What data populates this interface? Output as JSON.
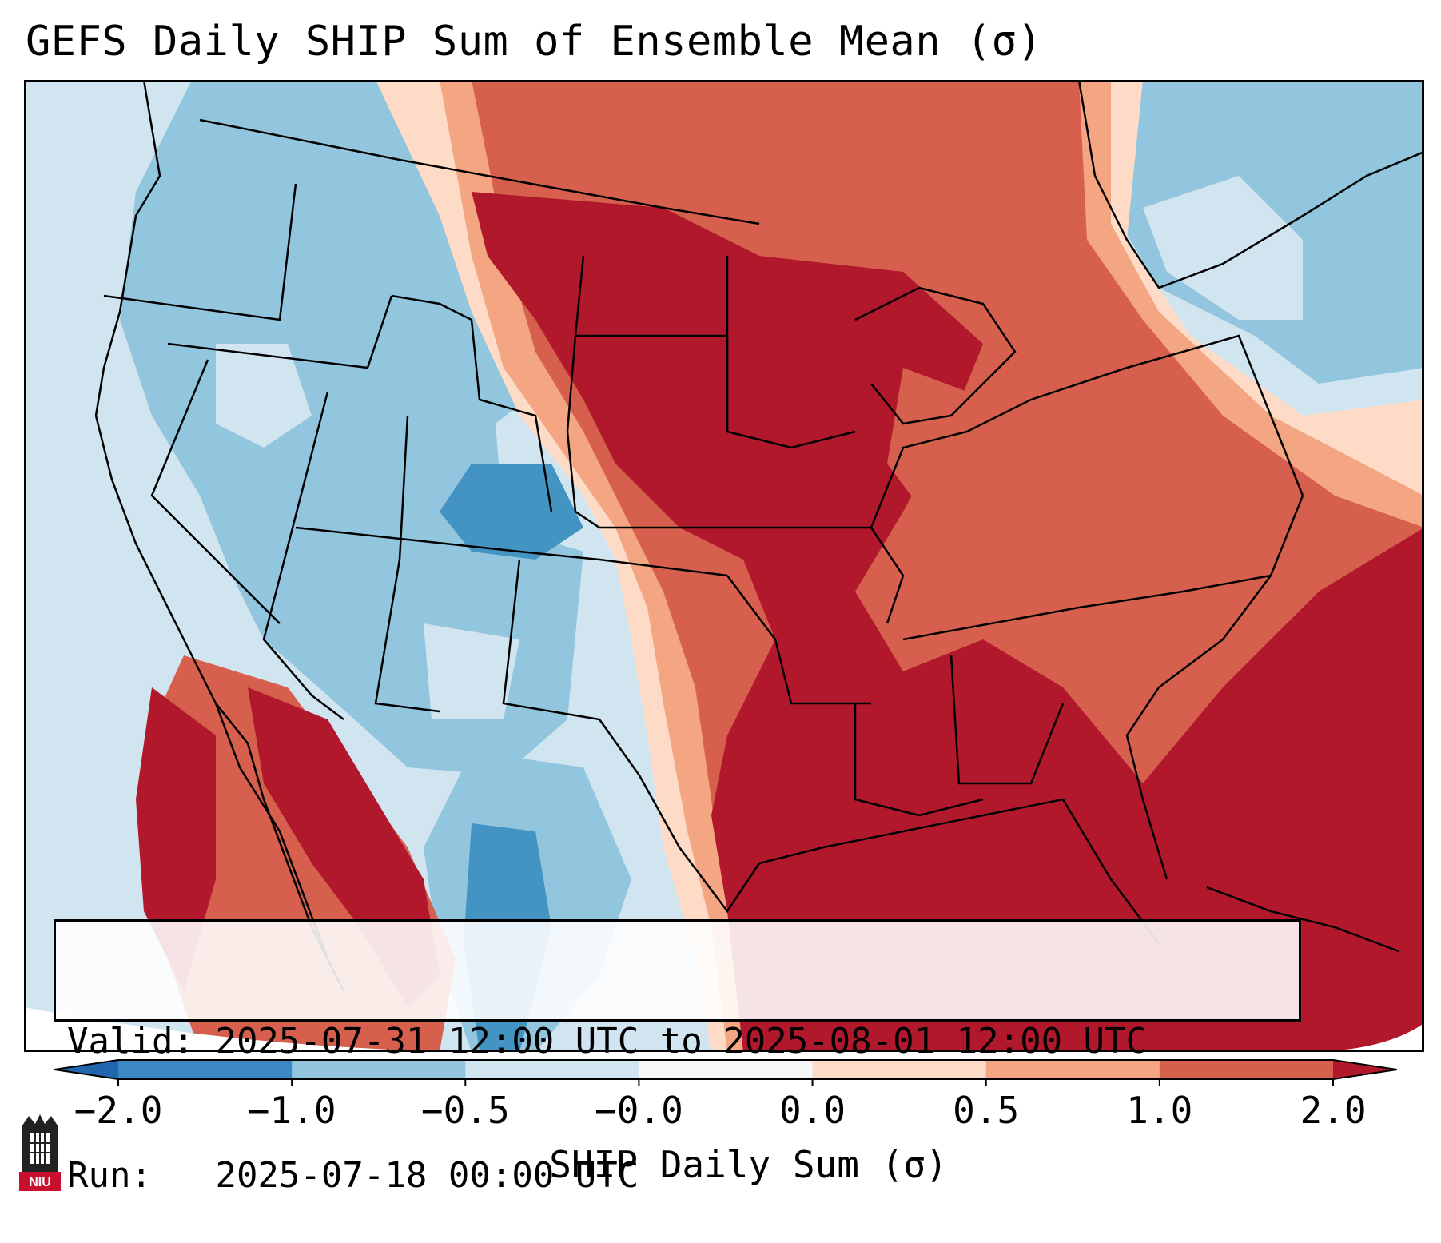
{
  "title": "GEFS Daily SHIP Sum of Ensemble Mean (σ)",
  "info": {
    "valid_label": "Valid:",
    "valid_value": "2025-07-31 12:00 UTC to 2025-08-01 12:00 UTC",
    "run_label": "Run:",
    "run_value": "2025-07-18 00:00 UTC"
  },
  "colorbar": {
    "label": "SHIP Daily Sum (σ)",
    "ticks": [
      "−2.0",
      "−1.0",
      "−0.5",
      "−0.0",
      "0.0",
      "0.5",
      "1.0",
      "2.0"
    ],
    "colors": [
      "#3b88c4",
      "#92c5de",
      "#d1e5f0",
      "#f7f7f7",
      "#fddbc7",
      "#f4a582",
      "#d6604d"
    ],
    "under_color": "#2166ac",
    "over_color": "#b2182b"
  },
  "logo": {
    "text": "NIU",
    "colors": {
      "red": "#c8102e",
      "black": "#222222"
    }
  },
  "map": {
    "colors": {
      "strong_neg": "#4393c3",
      "neg": "#92c5de",
      "weak_neg": "#d1e5f0",
      "neutral": "#f7f7f7",
      "weak_pos": "#fddbc7",
      "pos": "#f4a582",
      "strong_pos": "#d6604d",
      "extreme_pos": "#b2182b"
    }
  }
}
